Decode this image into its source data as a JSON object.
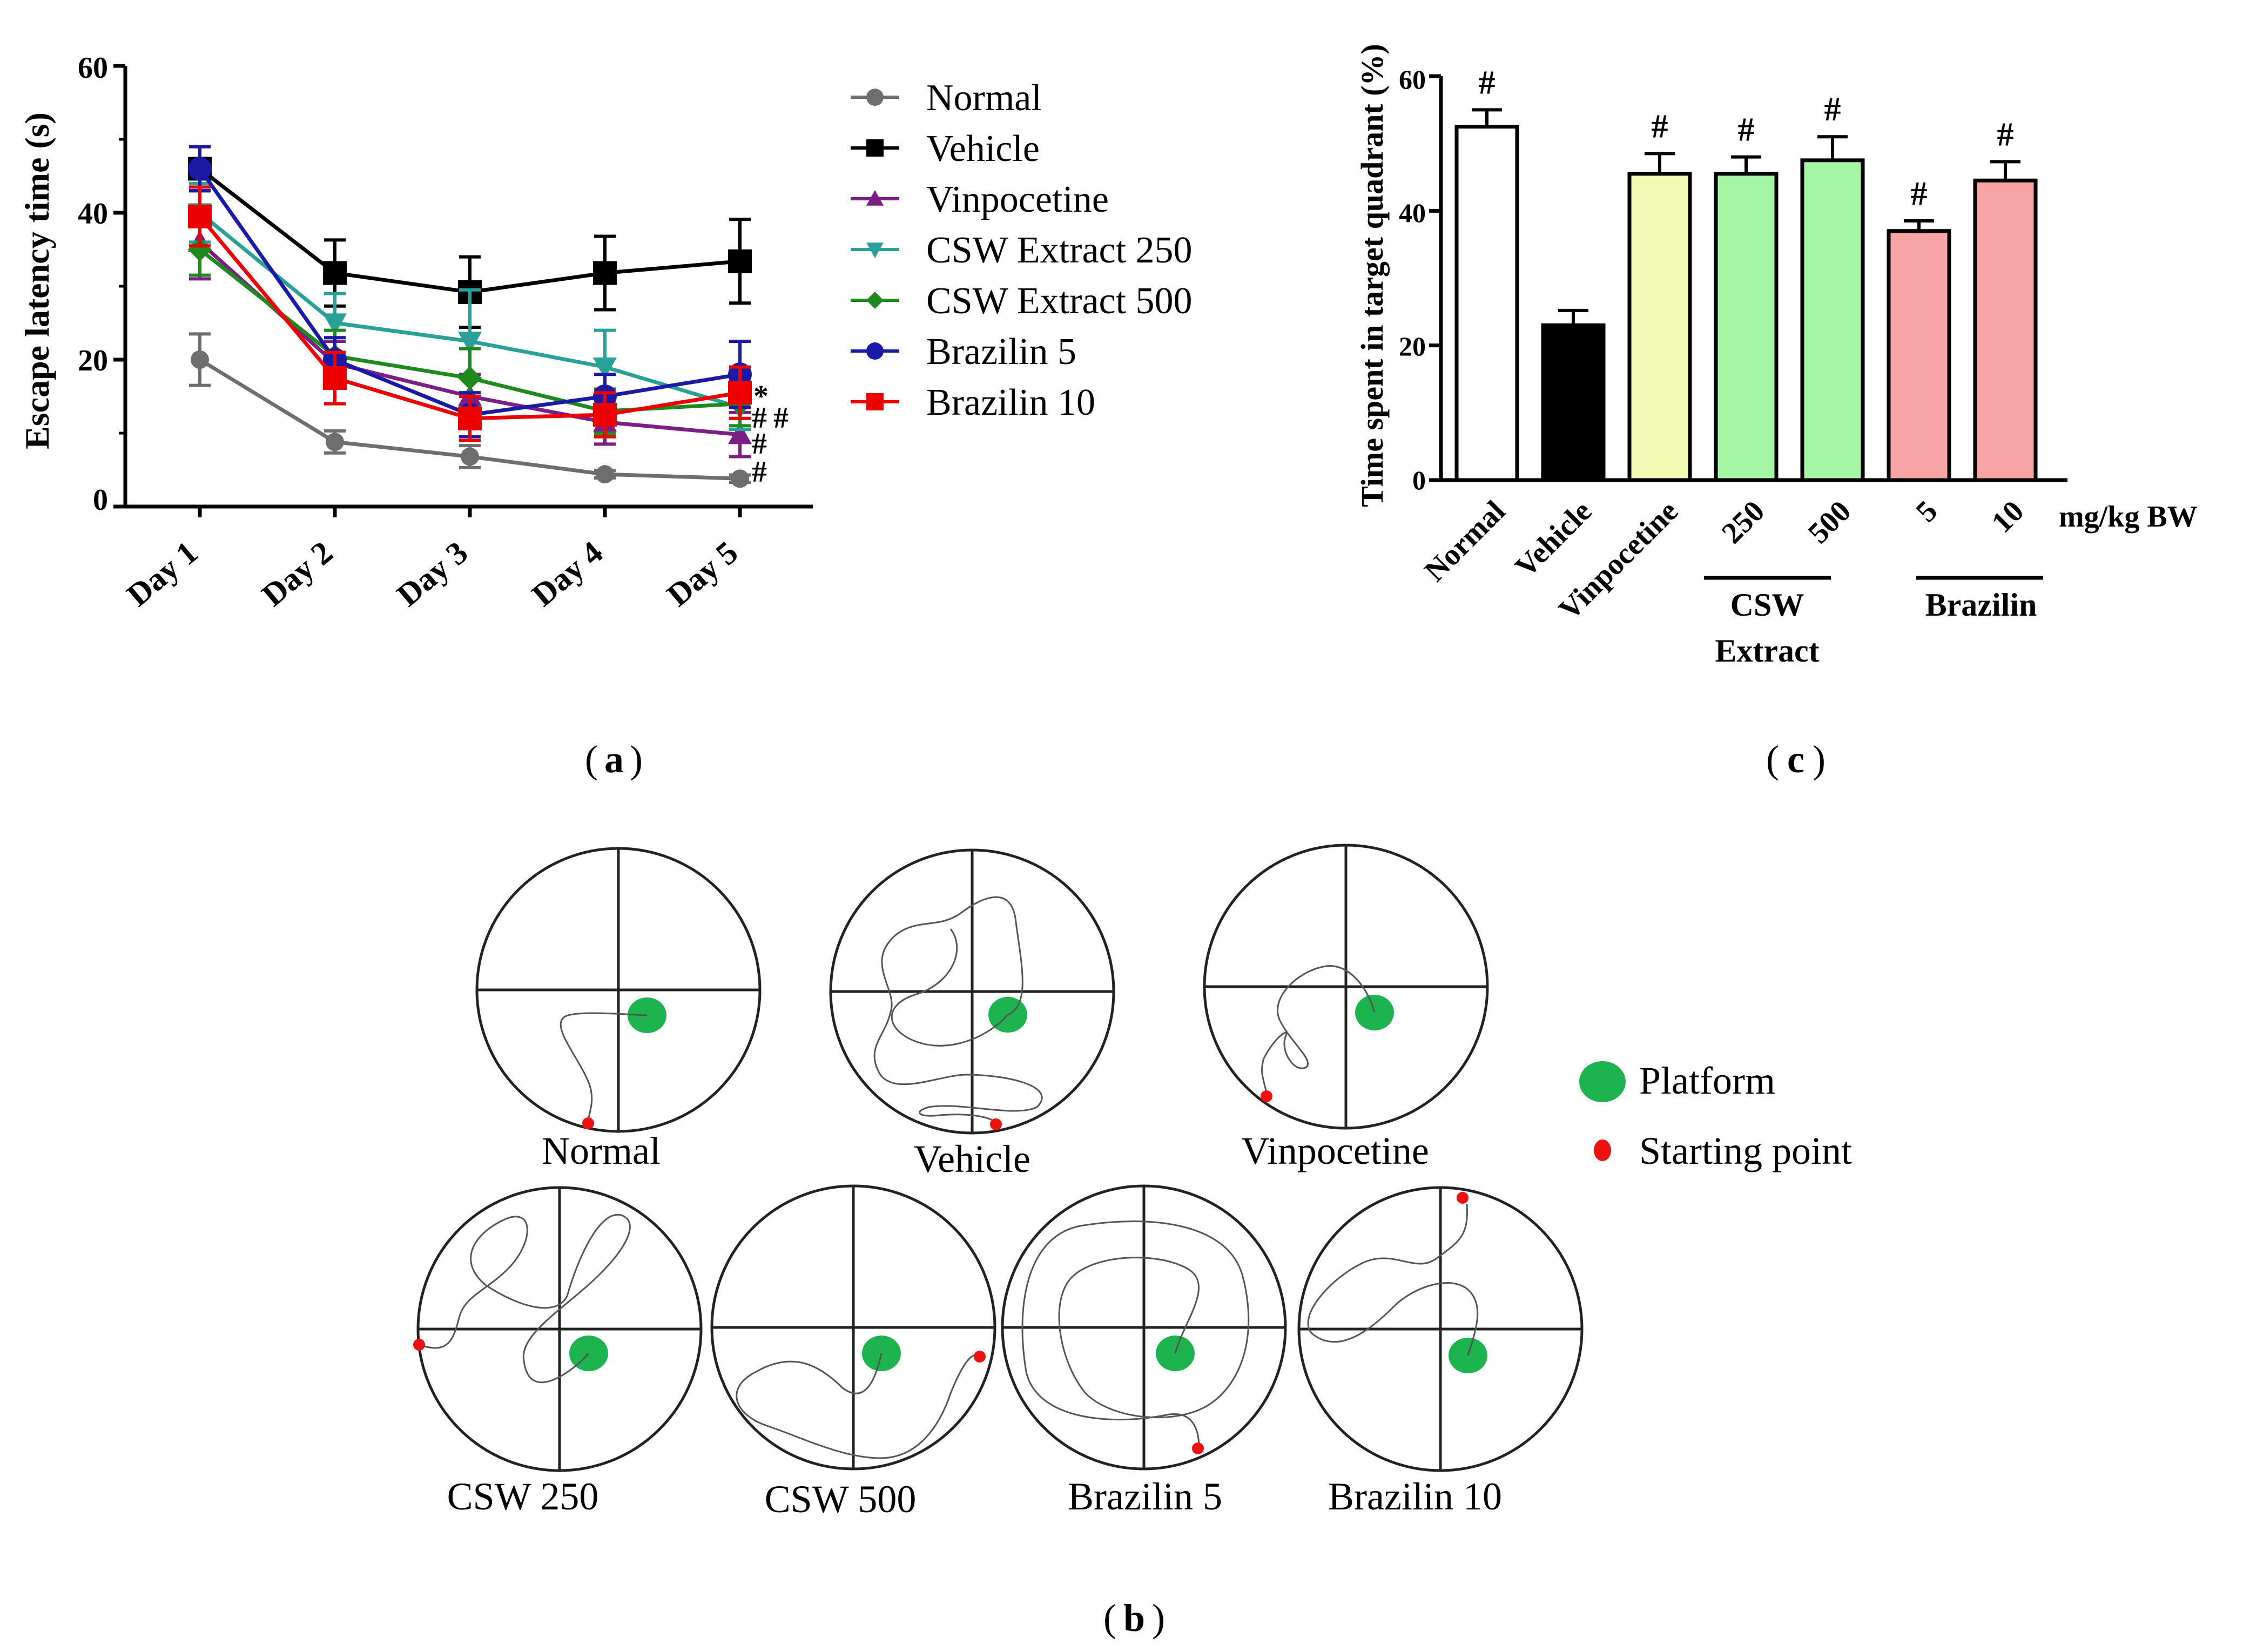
{
  "panel_labels": {
    "a": "a",
    "b": "b",
    "c": "c"
  },
  "chart_data": [
    {
      "id": "a",
      "type": "line",
      "ylabel": "Escape latency time (s)",
      "xlabel": "",
      "categories": [
        "Day 1",
        "Day 2",
        "Day 3",
        "Day 4",
        "Day 5"
      ],
      "ylim": [
        0,
        60
      ],
      "yticks": [
        "0",
        "20",
        "40",
        "60"
      ],
      "series": [
        {
          "name": "Normal",
          "color": "#6e6e6e",
          "marker": "circle",
          "values": [
            20,
            8.8,
            6.8,
            4.4,
            3.8
          ],
          "errors": [
            3.5,
            1.5,
            1.5,
            0.5,
            0.5
          ]
        },
        {
          "name": "Vehicle",
          "color": "#000000",
          "marker": "square",
          "values": [
            46,
            31.8,
            29.2,
            31.8,
            33.4
          ],
          "errors": [
            3,
            4.5,
            4.8,
            5,
            5.7
          ]
        },
        {
          "name": "Vinpocetine",
          "color": "#7b1f86",
          "marker": "triangle-up",
          "values": [
            36,
            19.5,
            15,
            11.5,
            9.8
          ],
          "errors": [
            5,
            3,
            3,
            3,
            3
          ]
        },
        {
          "name": "CSW Extract 250",
          "color": "#2aa198",
          "marker": "triangle-down",
          "values": [
            40,
            25,
            22.5,
            19,
            13.5
          ],
          "errors": [
            4,
            4,
            7,
            5,
            3
          ]
        },
        {
          "name": "CSW Extract 500",
          "color": "#1e8a1e",
          "marker": "diamond",
          "values": [
            35,
            20.5,
            17.5,
            13,
            14
          ],
          "errors": [
            3.5,
            3.5,
            4,
            3,
            3
          ]
        },
        {
          "name": "Brazilin 5",
          "color": "#1a1aa6",
          "marker": "circle",
          "values": [
            46,
            20,
            12.5,
            15,
            18
          ],
          "errors": [
            3,
            3,
            3,
            3,
            4.5
          ]
        },
        {
          "name": "Brazilin 10",
          "color": "#ee0000",
          "marker": "square",
          "values": [
            39.5,
            17.5,
            12,
            12.5,
            15.5
          ],
          "errors": [
            4,
            3.5,
            3,
            3,
            3.5
          ]
        }
      ],
      "annotations": [
        "*",
        "##",
        "#",
        "#"
      ]
    },
    {
      "id": "c",
      "type": "bar",
      "ylabel": "Time spent in target quadrant (%)",
      "xlabel": "mg/kg BW",
      "categories": [
        "Normal",
        "Vehicle",
        "Vinpocetine",
        "250",
        "500",
        "5",
        "10"
      ],
      "values": [
        52.5,
        23,
        45.5,
        45.5,
        47.5,
        37,
        44.5
      ],
      "errors": [
        2.5,
        2.2,
        3,
        2.5,
        3.5,
        1.5,
        2.8
      ],
      "colors": [
        "#ffffff",
        "#000000",
        "#f2f9b5",
        "#a4f5a4",
        "#a4f5a4",
        "#f9a4a4",
        "#f9a4a4"
      ],
      "significance": [
        "#",
        "",
        "#",
        "#",
        "#",
        "#",
        "#"
      ],
      "group_labels": [
        "CSW",
        "Extract",
        "Brazilin"
      ],
      "ylim": [
        0,
        60
      ],
      "yticks": [
        "0",
        "20",
        "40",
        "60"
      ]
    }
  ],
  "panel_b": {
    "mazes": [
      {
        "label": "Normal"
      },
      {
        "label": "Vehicle"
      },
      {
        "label": "Vinpocetine"
      },
      {
        "label": "CSW 250"
      },
      {
        "label": "CSW 500"
      },
      {
        "label": "Brazilin 5"
      },
      {
        "label": "Brazilin 10"
      }
    ],
    "legend": {
      "platform": "Platform",
      "start": "Starting point"
    },
    "colors": {
      "platform": "#1db34f",
      "start": "#ee1111"
    }
  }
}
